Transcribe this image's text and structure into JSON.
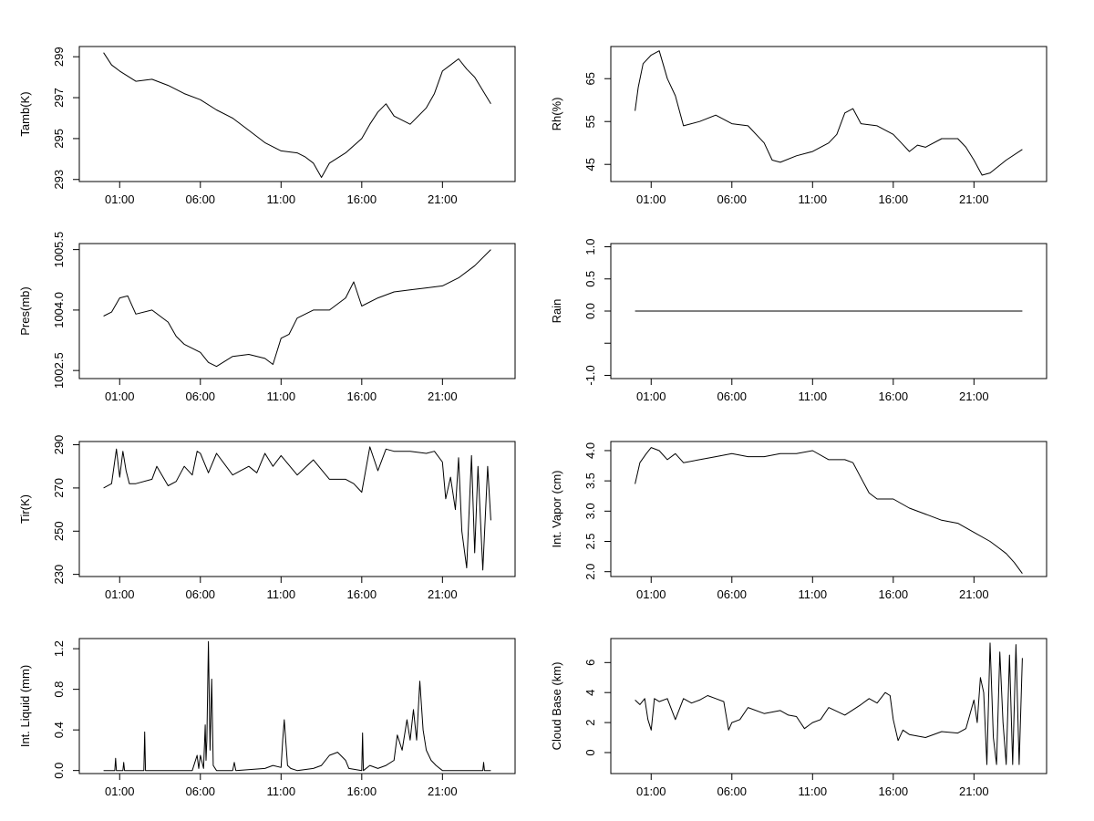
{
  "chart_data": [
    {
      "type": "line",
      "ylabel": "Tamb(K)",
      "xlim": [
        -1.5,
        25.5
      ],
      "ylim": [
        292.9,
        299.5
      ],
      "x_ticks": [
        1,
        6,
        11,
        16,
        21
      ],
      "x_tick_labels": [
        "01:00",
        "06:00",
        "11:00",
        "16:00",
        "21:00"
      ],
      "y_ticks": [
        293,
        295,
        297,
        299
      ],
      "y_tick_labels": [
        "293",
        "295",
        "297",
        "299"
      ],
      "series": [
        {
          "x": [
            0,
            0.5,
            1,
            2,
            3,
            4,
            5,
            6,
            7,
            8,
            9,
            10,
            11,
            12,
            12.5,
            13,
            13.5,
            14,
            15,
            16,
            16.5,
            17,
            17.5,
            18,
            19,
            20,
            20.5,
            21,
            21.5,
            22,
            22.5,
            23,
            24
          ],
          "y": [
            299.2,
            298.6,
            298.3,
            297.8,
            297.9,
            297.6,
            297.2,
            296.9,
            296.4,
            296.0,
            295.4,
            294.8,
            294.4,
            294.3,
            294.1,
            293.8,
            293.1,
            293.8,
            294.3,
            295.0,
            295.7,
            296.3,
            296.7,
            296.1,
            295.7,
            296.5,
            297.2,
            298.3,
            298.6,
            298.9,
            298.4,
            298.0,
            296.7
          ]
        }
      ]
    },
    {
      "type": "line",
      "ylabel": "Rh(%)",
      "xlim": [
        -1.5,
        25.5
      ],
      "ylim": [
        41,
        72.5
      ],
      "x_ticks": [
        1,
        6,
        11,
        16,
        21
      ],
      "x_tick_labels": [
        "01:00",
        "06:00",
        "11:00",
        "16:00",
        "21:00"
      ],
      "y_ticks": [
        45,
        55,
        65
      ],
      "y_tick_labels": [
        "45",
        "55",
        "65"
      ],
      "series": [
        {
          "x": [
            0,
            0.2,
            0.5,
            1,
            1.5,
            2,
            2.5,
            3,
            4,
            5,
            6,
            7,
            8,
            8.5,
            9,
            10,
            11,
            12,
            12.5,
            13,
            13.5,
            14,
            15,
            16,
            16.5,
            17,
            17.5,
            18,
            19,
            20,
            20.5,
            21,
            21.5,
            22,
            23,
            24
          ],
          "y": [
            57.5,
            63,
            68.5,
            70.5,
            71.5,
            65,
            61,
            54,
            55,
            56.5,
            54.5,
            54,
            50,
            46,
            45.5,
            47,
            48,
            50,
            52,
            57,
            58,
            54.5,
            54,
            52,
            50,
            48,
            49.5,
            49,
            51,
            51,
            49,
            46,
            42.5,
            43,
            46,
            48.5
          ]
        }
      ]
    },
    {
      "type": "line",
      "ylabel": "Pres(mb)",
      "xlim": [
        -1.5,
        25.5
      ],
      "ylim": [
        1002.3,
        1005.65
      ],
      "x_ticks": [
        1,
        6,
        11,
        16,
        21
      ],
      "x_tick_labels": [
        "01:00",
        "06:00",
        "11:00",
        "16:00",
        "21:00"
      ],
      "y_ticks": [
        1002.5,
        1004.0,
        1005.5
      ],
      "y_tick_labels": [
        "1002.5",
        "1004.0",
        "1005.5"
      ],
      "series": [
        {
          "x": [
            0,
            0.5,
            1,
            1.5,
            2,
            3,
            4,
            4.5,
            5,
            6,
            6.5,
            7,
            8,
            9,
            10,
            10.5,
            11,
            11.5,
            12,
            13,
            14,
            15,
            15.5,
            16,
            17,
            18,
            19,
            20,
            21,
            22,
            23,
            24
          ],
          "y": [
            1003.85,
            1003.95,
            1004.3,
            1004.35,
            1003.9,
            1004.0,
            1003.7,
            1003.35,
            1003.15,
            1002.95,
            1002.7,
            1002.6,
            1002.85,
            1002.9,
            1002.8,
            1002.65,
            1003.3,
            1003.4,
            1003.8,
            1004.0,
            1004.0,
            1004.3,
            1004.7,
            1004.1,
            1004.3,
            1004.45,
            1004.5,
            1004.55,
            1004.6,
            1004.8,
            1005.1,
            1005.5
          ]
        }
      ]
    },
    {
      "type": "line",
      "ylabel": "Rain",
      "xlim": [
        -1.5,
        25.5
      ],
      "ylim": [
        -1.05,
        1.05
      ],
      "x_ticks": [
        1,
        6,
        11,
        16,
        21
      ],
      "x_tick_labels": [
        "01:00",
        "06:00",
        "11:00",
        "16:00",
        "21:00"
      ],
      "y_ticks": [
        -1.0,
        -0.5,
        0.0,
        0.5,
        1.0
      ],
      "y_tick_labels": [
        "-1.0",
        "",
        "0.0",
        "0.5",
        "1.0"
      ],
      "series": [
        {
          "x": [
            0,
            24
          ],
          "y": [
            0.0,
            0.0
          ]
        }
      ]
    },
    {
      "type": "line",
      "ylabel": "Tir(K)",
      "xlim": [
        -1.5,
        25.5
      ],
      "ylim": [
        229,
        291.5
      ],
      "x_ticks": [
        1,
        6,
        11,
        16,
        21
      ],
      "x_tick_labels": [
        "01:00",
        "06:00",
        "11:00",
        "16:00",
        "21:00"
      ],
      "y_ticks": [
        230,
        250,
        270,
        290
      ],
      "y_tick_labels": [
        "230",
        "250",
        "270",
        "290"
      ],
      "series": [
        {
          "x": [
            0,
            0.5,
            0.8,
            1.0,
            1.2,
            1.4,
            1.6,
            2,
            3,
            3.3,
            4,
            4.5,
            5,
            5.5,
            5.8,
            6,
            6.5,
            7,
            8,
            9,
            9.5,
            10,
            10.5,
            11,
            12,
            13,
            14,
            15,
            15.5,
            16,
            16.5,
            17,
            17.5,
            18,
            19,
            20,
            20.5,
            21,
            21.2,
            21.5,
            21.8,
            22,
            22.2,
            22.5,
            22.8,
            23,
            23.2,
            23.5,
            23.8,
            24
          ],
          "y": [
            270,
            272,
            288,
            275,
            287,
            278,
            272,
            272,
            274,
            280,
            271,
            273,
            280,
            276,
            287,
            286,
            277,
            286,
            276,
            280,
            277,
            286,
            280,
            285,
            276,
            283,
            274,
            274,
            272,
            268,
            289,
            278,
            288,
            287,
            287,
            286,
            287,
            282,
            265,
            275,
            260,
            284,
            250,
            233,
            285,
            240,
            280,
            232,
            280,
            255
          ]
        }
      ]
    },
    {
      "type": "line",
      "ylabel": "Int. Vapor (cm)",
      "xlim": [
        -1.5,
        25.5
      ],
      "ylim": [
        1.92,
        4.15
      ],
      "x_ticks": [
        1,
        6,
        11,
        16,
        21
      ],
      "x_tick_labels": [
        "01:00",
        "06:00",
        "11:00",
        "16:00",
        "21:00"
      ],
      "y_ticks": [
        2.0,
        2.5,
        3.0,
        3.5,
        4.0
      ],
      "y_tick_labels": [
        "2.0",
        "2.5",
        "3.0",
        "3.5",
        "4.0"
      ],
      "series": [
        {
          "x": [
            0,
            0.3,
            0.7,
            1,
            1.5,
            2,
            2.5,
            3,
            4,
            5,
            6,
            7,
            8,
            9,
            10,
            11,
            12,
            13,
            13.5,
            14,
            14.5,
            15,
            16,
            17,
            18,
            19,
            20,
            21,
            22,
            22.5,
            23,
            23.5,
            24
          ],
          "y": [
            3.45,
            3.8,
            3.95,
            4.05,
            4.0,
            3.85,
            3.95,
            3.8,
            3.85,
            3.9,
            3.95,
            3.9,
            3.9,
            3.95,
            3.95,
            4.0,
            3.85,
            3.85,
            3.8,
            3.55,
            3.3,
            3.2,
            3.2,
            3.05,
            2.95,
            2.85,
            2.8,
            2.65,
            2.5,
            2.4,
            2.3,
            2.15,
            1.97
          ]
        }
      ]
    },
    {
      "type": "line",
      "ylabel": "Int. Liquid (mm)",
      "xlim": [
        -1.5,
        25.5
      ],
      "ylim": [
        -0.03,
        1.3
      ],
      "x_ticks": [
        1,
        6,
        11,
        16,
        21
      ],
      "x_tick_labels": [
        "01:00",
        "06:00",
        "11:00",
        "16:00",
        "21:00"
      ],
      "y_ticks": [
        0.0,
        0.4,
        0.8,
        1.2
      ],
      "y_tick_labels": [
        "0.0",
        "0.4",
        "0.8",
        "1.2"
      ],
      "series": [
        {
          "x": [
            0,
            0.7,
            0.75,
            0.8,
            1.2,
            1.25,
            1.3,
            2.5,
            2.55,
            2.6,
            5.5,
            5.8,
            5.9,
            6.0,
            6.2,
            6.3,
            6.35,
            6.4,
            6.5,
            6.6,
            6.7,
            6.8,
            7.0,
            8,
            8.1,
            8.2,
            10,
            10.5,
            11,
            11.1,
            11.2,
            11.4,
            11.6,
            12,
            13,
            13.5,
            14,
            14.5,
            15,
            15.2,
            16,
            16.05,
            16.1,
            16.5,
            17,
            17.5,
            18,
            18.2,
            18.5,
            18.8,
            19.0,
            19.2,
            19.4,
            19.6,
            19.8,
            20,
            20.3,
            20.6,
            21,
            22,
            23,
            23.5,
            23.55,
            23.6,
            24
          ],
          "y": [
            0,
            0,
            0.12,
            0,
            0,
            0.08,
            0,
            0,
            0.38,
            0,
            0,
            0.15,
            0.02,
            0.15,
            0.02,
            0.45,
            0.1,
            0.3,
            1.27,
            0.2,
            0.9,
            0.05,
            0,
            0,
            0.08,
            0,
            0.02,
            0.05,
            0.03,
            0.3,
            0.5,
            0.05,
            0.02,
            0,
            0.02,
            0.05,
            0.15,
            0.18,
            0.1,
            0.02,
            0,
            0.37,
            0,
            0.05,
            0.02,
            0.05,
            0.1,
            0.35,
            0.2,
            0.5,
            0.3,
            0.6,
            0.3,
            0.88,
            0.4,
            0.2,
            0.1,
            0.05,
            0,
            0,
            0,
            0,
            0.08,
            0,
            0
          ]
        }
      ]
    },
    {
      "type": "line",
      "ylabel": "Cloud Base (km)",
      "xlim": [
        -1.5,
        25.5
      ],
      "ylim": [
        -1.4,
        7.6
      ],
      "x_ticks": [
        1,
        6,
        11,
        16,
        21
      ],
      "x_tick_labels": [
        "01:00",
        "06:00",
        "11:00",
        "16:00",
        "21:00"
      ],
      "y_ticks": [
        0,
        2,
        4,
        6
      ],
      "y_tick_labels": [
        "0",
        "2",
        "4",
        "6"
      ],
      "series": [
        {
          "x": [
            0,
            0.3,
            0.6,
            0.8,
            1.0,
            1.2,
            1.5,
            2,
            2.5,
            3,
            3.5,
            4,
            4.5,
            5,
            5.5,
            5.8,
            6,
            6.5,
            7,
            8,
            9,
            9.5,
            10,
            10.5,
            11,
            11.5,
            12,
            13,
            14,
            14.5,
            15,
            15.5,
            15.8,
            16,
            16.3,
            16.6,
            17,
            18,
            19,
            20,
            20.5,
            21,
            21.2,
            21.4,
            21.6,
            21.8,
            22.0,
            22.2,
            22.4,
            22.6,
            22.8,
            23.0,
            23.2,
            23.4,
            23.6,
            23.8,
            24
          ],
          "y": [
            3.5,
            3.2,
            3.6,
            2.2,
            1.5,
            3.6,
            3.4,
            3.6,
            2.2,
            3.6,
            3.3,
            3.5,
            3.8,
            3.6,
            3.4,
            1.5,
            2.0,
            2.2,
            3.0,
            2.6,
            2.8,
            2.5,
            2.4,
            1.6,
            2.0,
            2.2,
            3.0,
            2.5,
            3.2,
            3.6,
            3.3,
            4.0,
            3.8,
            2.2,
            0.8,
            1.5,
            1.2,
            1.0,
            1.4,
            1.3,
            1.6,
            3.5,
            2.0,
            5.0,
            4.0,
            -0.8,
            7.3,
            1.0,
            -0.8,
            6.7,
            2.0,
            -0.8,
            6.5,
            -0.8,
            7.2,
            -0.8,
            6.3
          ]
        }
      ]
    }
  ]
}
